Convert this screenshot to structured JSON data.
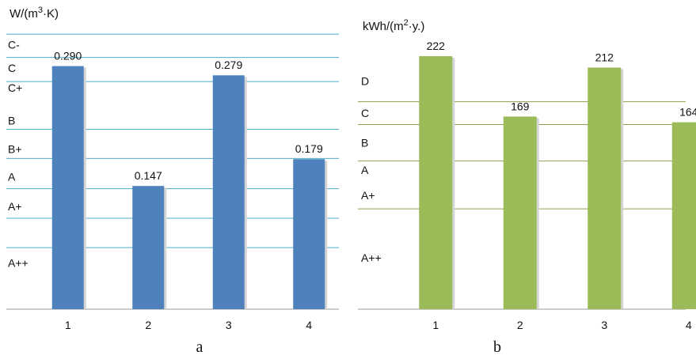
{
  "chart_data": [
    {
      "type": "bar",
      "panel": "a",
      "ylabel": "W/(m³·K)",
      "ylabel_parts": {
        "prefix": "W/(m",
        "sup": "3",
        "suffix": "·K)"
      },
      "categories": [
        "1",
        "2",
        "3",
        "4"
      ],
      "values": [
        0.29,
        0.147,
        0.279,
        0.179
      ],
      "value_labels": [
        "0.290",
        "0.147",
        "0.279",
        "0.179"
      ],
      "ylim": [
        0,
        0.333
      ],
      "bar_color": "#4f81bd",
      "band_line_color": "#4bacc6",
      "class_lines": [
        0.0735,
        0.1085,
        0.1438,
        0.1798,
        0.2146,
        0.2716,
        0.3003,
        0.3282
      ],
      "class_labels": [
        {
          "label": "C-",
          "value": 0.3155
        },
        {
          "label": "C",
          "value": 0.2878
        },
        {
          "label": "C+",
          "value": 0.264
        },
        {
          "label": "B",
          "value": 0.225
        },
        {
          "label": "B+",
          "value": 0.1912
        },
        {
          "label": "A",
          "value": 0.1578
        },
        {
          "label": "A+",
          "value": 0.1225
        },
        {
          "label": "A++",
          "value": 0.055
        }
      ]
    },
    {
      "type": "bar",
      "panel": "b",
      "ylabel": "kWh/(m²·y.)",
      "ylabel_parts": {
        "prefix": "kWh/(m",
        "sup": "2",
        "suffix": "·y.)"
      },
      "categories": [
        "1",
        "2",
        "3",
        "4"
      ],
      "values": [
        222,
        169,
        212,
        164
      ],
      "value_labels": [
        "222",
        "169",
        "212",
        "164"
      ],
      "ylim": [
        0,
        222
      ],
      "bar_color": "#9bbb59",
      "band_line_color": "#8aa24a",
      "class_lines": [
        88,
        130,
        162,
        182
      ],
      "class_labels": [
        {
          "label": "D",
          "value": 200
        },
        {
          "label": "C",
          "value": 172
        },
        {
          "label": "B",
          "value": 146
        },
        {
          "label": "A",
          "value": 122
        },
        {
          "label": "A+",
          "value": 100
        },
        {
          "label": "A++",
          "value": 45
        }
      ]
    }
  ]
}
